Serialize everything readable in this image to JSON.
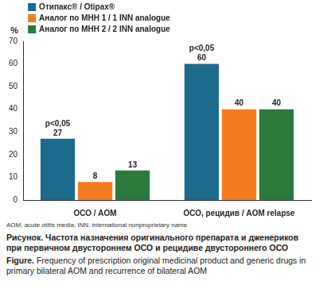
{
  "chart_data": {
    "type": "bar",
    "y_label": "%",
    "categories": [
      "ОСО / AOM",
      "ОСО, рецидив / AOM relapse"
    ],
    "series": [
      {
        "name": "Отипакс® / Otipax®",
        "color": "#1c6a8c",
        "values": [
          27,
          60
        ]
      },
      {
        "name": "Аналог по МНН 1 / 1 INN analogue",
        "color": "#f47b20",
        "values": [
          8,
          40
        ]
      },
      {
        "name": "Аналог по МНН 2 / 2 INN analogue",
        "color": "#2b7a3b",
        "values": [
          13,
          40
        ]
      }
    ],
    "ylim": [
      0,
      70
    ],
    "yticks": [
      0,
      10,
      20,
      30,
      40,
      50,
      60,
      70
    ],
    "grid": false,
    "legend": "top-left",
    "data_labels": true,
    "annotations": [
      {
        "text": "p<0,05",
        "series": "Отипакс® / Otipax®",
        "category": "ОСО / AOM"
      },
      {
        "text": "p<0,05",
        "series": "Отипакс® / Otipax®",
        "category": "ОСО, рецидив / AOM relapse"
      }
    ],
    "note": "AOM, acute otitis media; INN, international nonproprietary name",
    "caption": {
      "ru": {
        "label": "Рисунок.",
        "text": "Частота назначения оригинального препарата и дженериков при первичном двустороннем ОСО и рецидиве двустороннего ОСО"
      },
      "en": {
        "label": "Figure.",
        "text": "Frequency of prescription original medicinal product and generic drugs in primary bilateral AOM and recurrence of bilateral AOM"
      }
    }
  }
}
